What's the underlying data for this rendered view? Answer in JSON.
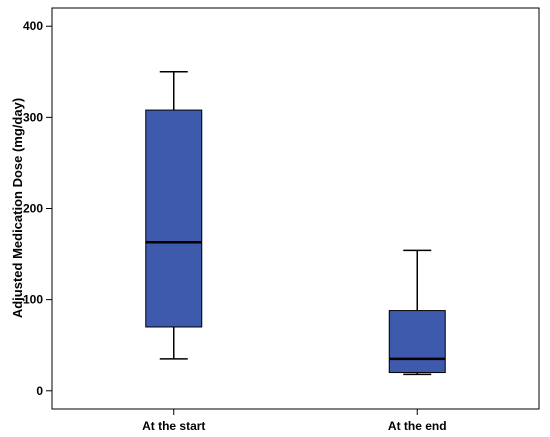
{
  "chart_data": {
    "type": "boxplot",
    "xlabel": "",
    "ylabel": "Adjusted Medication Dose (mg/day)",
    "ylim": [
      -20,
      420
    ],
    "yticks": [
      0,
      100,
      200,
      300,
      400
    ],
    "grid": false,
    "categories": [
      "At the start",
      "At the end"
    ],
    "boxes": [
      {
        "category": "At the start",
        "min": 35,
        "q1": 70,
        "median": 163,
        "q3": 308,
        "max": 350
      },
      {
        "category": "At the end",
        "min": 18,
        "q1": 20,
        "median": 35,
        "q3": 88,
        "max": 154
      }
    ],
    "box_color": "#3d5aad",
    "axis_color": "#000000"
  }
}
